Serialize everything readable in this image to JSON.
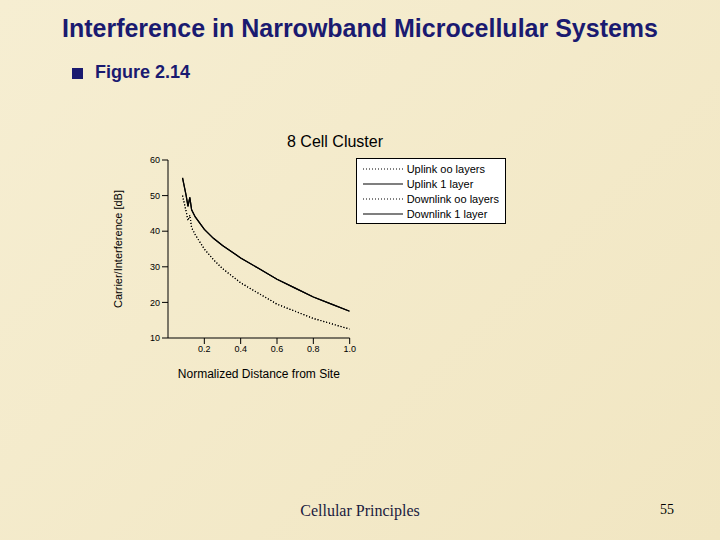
{
  "slide": {
    "title": "Interference in Narrowband Microcellular Systems",
    "bullet": "Figure 2.14",
    "footer": "Cellular Principles",
    "page": "55"
  },
  "chart_data": {
    "type": "line",
    "title": "8 Cell Cluster",
    "x_label": "Normalized Distance from Site",
    "y_label": "Carrier/Interference [dB]",
    "x": [
      0.08,
      0.1,
      0.11,
      0.12,
      0.13,
      0.15,
      0.2,
      0.25,
      0.3,
      0.4,
      0.5,
      0.6,
      0.7,
      0.8,
      0.9,
      1.0
    ],
    "series": [
      {
        "name": "Uplink oo layers",
        "color": "#000000",
        "line_style": "dotted",
        "values": [
          50,
          45.5,
          43,
          44.5,
          41,
          39,
          35,
          32,
          29.5,
          25.5,
          22.5,
          19.5,
          17.5,
          15.5,
          14,
          12.5
        ]
      },
      {
        "name": "Uplink 1 layer",
        "color": "#000000",
        "line_style": "solid",
        "values": [
          55,
          50,
          47,
          49.5,
          46,
          44,
          40.5,
          38,
          36,
          32.5,
          29.5,
          26.5,
          24,
          21.5,
          19.5,
          17.5
        ]
      },
      {
        "name": "Downlink oo layers",
        "color": "#000000",
        "line_style": "dotted",
        "values": [
          50,
          45.5,
          43,
          44.5,
          41,
          39,
          35,
          32,
          29.5,
          25.5,
          22.5,
          19.5,
          17.5,
          15.5,
          14,
          12.5
        ]
      },
      {
        "name": "Downlink 1 layer",
        "color": "#000000",
        "line_style": "solid",
        "values": [
          55,
          50,
          47,
          49.5,
          46,
          44,
          40.5,
          38,
          36,
          32.5,
          29.5,
          26.5,
          24,
          21.5,
          19.5,
          17.5
        ]
      }
    ],
    "xlim": [
      0,
      1
    ],
    "xticks": [
      0.2,
      0.4,
      0.6,
      0.8,
      {
        "value": 1,
        "label": "1.0"
      }
    ],
    "ylim": [
      10,
      60
    ],
    "yticks": [
      10,
      20,
      30,
      40,
      50,
      60
    ],
    "grid": false,
    "legend": "upper right"
  }
}
